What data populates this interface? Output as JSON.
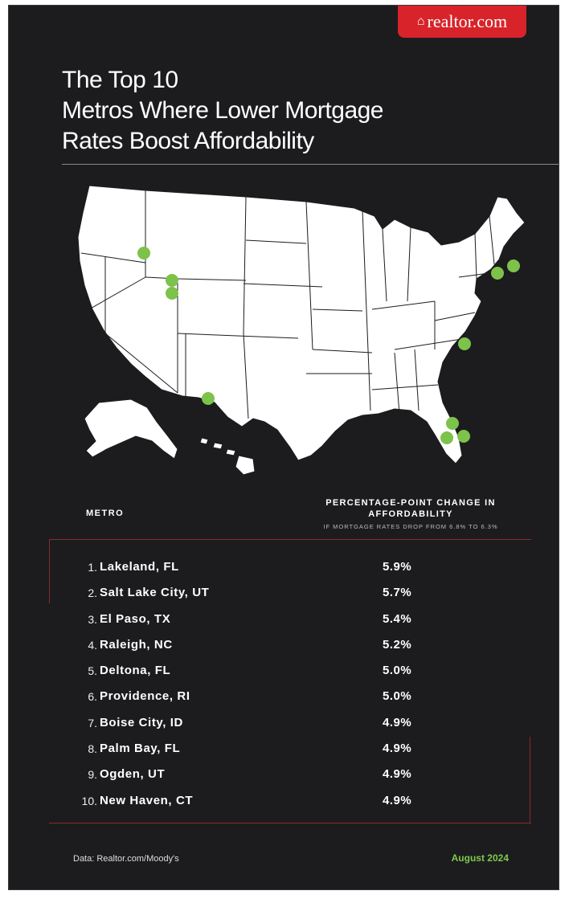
{
  "brand": {
    "logo_text": "realtor.com"
  },
  "title": {
    "line1": "The Top 10",
    "line2": "Metros Where Lower Mortgage",
    "line3": "Rates Boost Affordability"
  },
  "table": {
    "col_metro": "METRO",
    "col_change": "PERCENTAGE-POINT CHANGE IN AFFORDABILITY",
    "col_change_sub": "IF MORTGAGE RATES DROP FROM 6.8% TO 6.3%",
    "rows": [
      {
        "rank": "1.",
        "metro": "Lakeland, FL",
        "change": "5.9%"
      },
      {
        "rank": "2.",
        "metro": "Salt Lake City, UT",
        "change": "5.7%"
      },
      {
        "rank": "3.",
        "metro": "El Paso, TX",
        "change": "5.4%"
      },
      {
        "rank": "4.",
        "metro": "Raleigh, NC",
        "change": "5.2%"
      },
      {
        "rank": "5.",
        "metro": "Deltona, FL",
        "change": "5.0%"
      },
      {
        "rank": "6.",
        "metro": "Providence, RI",
        "change": "5.0%"
      },
      {
        "rank": "7.",
        "metro": "Boise City, ID",
        "change": "4.9%"
      },
      {
        "rank": "8.",
        "metro": "Palm Bay, FL",
        "change": "4.9%"
      },
      {
        "rank": "9.",
        "metro": "Ogden, UT",
        "change": "4.9%"
      },
      {
        "rank": "10.",
        "metro": "New Haven, CT",
        "change": "4.9%"
      }
    ]
  },
  "footer": {
    "source": "Data: Realtor.com/Moody's",
    "date": "August 2024"
  },
  "colors": {
    "background": "#1c1c1e",
    "brand_red": "#d8232a",
    "marker_green": "#7dc24a",
    "map_fill": "#ffffff",
    "date_green": "#7dcb4a"
  }
}
